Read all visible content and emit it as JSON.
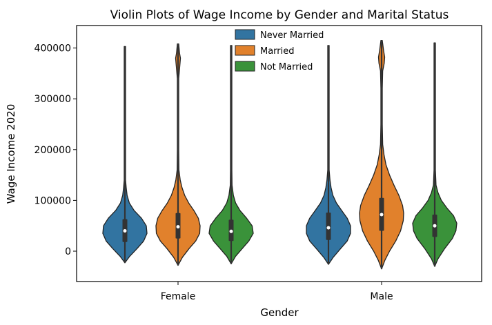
{
  "chart_data": {
    "type": "violin",
    "title": "Violin Plots of Wage Income by Gender and Marital Status",
    "xlabel": "Gender",
    "ylabel": "Wage Income 2020",
    "categories": [
      "Female",
      "Male"
    ],
    "ylim": [
      -60000,
      440000
    ],
    "yticks": [
      0,
      100000,
      200000,
      300000,
      400000
    ],
    "ytick_labels": [
      "0",
      "100000",
      "200000",
      "300000",
      "400000"
    ],
    "legend": {
      "placement": "top-center",
      "entries": [
        {
          "label": "Never Married",
          "color": "#3274a1"
        },
        {
          "label": "Married",
          "color": "#e1812c"
        },
        {
          "label": "Not Married",
          "color": "#3a923a"
        }
      ]
    },
    "series": [
      {
        "name": "Never Married",
        "color": "#3274a1",
        "groups": [
          {
            "category": "Female",
            "min": -23000,
            "max": 403000,
            "q1": 18000,
            "median": 40000,
            "q3": 63000,
            "profile": [
              [
                -23000,
                0
              ],
              [
                -10000,
                0.22
              ],
              [
                5000,
                0.55
              ],
              [
                20000,
                0.85
              ],
              [
                35000,
                1.0
              ],
              [
                50000,
                0.97
              ],
              [
                65000,
                0.75
              ],
              [
                80000,
                0.42
              ],
              [
                95000,
                0.2
              ],
              [
                110000,
                0.1
              ],
              [
                125000,
                0.06
              ],
              [
                140000,
                0.03
              ],
              [
                160000,
                0.01
              ],
              [
                200000,
                0.01
              ],
              [
                403000,
                0.01
              ]
            ]
          },
          {
            "category": "Male",
            "min": -26000,
            "max": 405000,
            "q1": 22000,
            "median": 46000,
            "q3": 76000,
            "profile": [
              [
                -26000,
                0
              ],
              [
                -12000,
                0.22
              ],
              [
                5000,
                0.55
              ],
              [
                20000,
                0.85
              ],
              [
                35000,
                1.0
              ],
              [
                50000,
                1.0
              ],
              [
                65000,
                0.85
              ],
              [
                80000,
                0.6
              ],
              [
                95000,
                0.36
              ],
              [
                110000,
                0.2
              ],
              [
                125000,
                0.12
              ],
              [
                140000,
                0.07
              ],
              [
                160000,
                0.03
              ],
              [
                200000,
                0.01
              ],
              [
                405000,
                0.01
              ]
            ]
          }
        ]
      },
      {
        "name": "Married",
        "color": "#e1812c",
        "groups": [
          {
            "category": "Female",
            "min": -28000,
            "max": 408000,
            "q1": 25000,
            "median": 48000,
            "q3": 75000,
            "profile": [
              [
                -28000,
                0
              ],
              [
                -12000,
                0.2
              ],
              [
                5000,
                0.5
              ],
              [
                20000,
                0.8
              ],
              [
                35000,
                0.98
              ],
              [
                50000,
                1.0
              ],
              [
                65000,
                0.92
              ],
              [
                80000,
                0.72
              ],
              [
                95000,
                0.48
              ],
              [
                110000,
                0.3
              ],
              [
                125000,
                0.18
              ],
              [
                140000,
                0.1
              ],
              [
                160000,
                0.04
              ],
              [
                200000,
                0.02
              ],
              [
                250000,
                0.01
              ],
              [
                340000,
                0.01
              ],
              [
                370000,
                0.09
              ],
              [
                380000,
                0.11
              ],
              [
                390000,
                0.07
              ],
              [
                408000,
                0.01
              ]
            ]
          },
          {
            "category": "Male",
            "min": -35000,
            "max": 415000,
            "q1": 40000,
            "median": 72000,
            "q3": 105000,
            "profile": [
              [
                -35000,
                0
              ],
              [
                -18000,
                0.15
              ],
              [
                0,
                0.36
              ],
              [
                20000,
                0.64
              ],
              [
                40000,
                0.86
              ],
              [
                60000,
                0.98
              ],
              [
                75000,
                1.0
              ],
              [
                90000,
                0.95
              ],
              [
                110000,
                0.78
              ],
              [
                130000,
                0.56
              ],
              [
                150000,
                0.36
              ],
              [
                170000,
                0.2
              ],
              [
                190000,
                0.11
              ],
              [
                210000,
                0.05
              ],
              [
                250000,
                0.02
              ],
              [
                320000,
                0.02
              ],
              [
                355000,
                0.05
              ],
              [
                370000,
                0.12
              ],
              [
                382000,
                0.14
              ],
              [
                395000,
                0.09
              ],
              [
                415000,
                0.01
              ]
            ]
          }
        ]
      },
      {
        "name": "Not Married",
        "color": "#3a923a",
        "groups": [
          {
            "category": "Female",
            "min": -25000,
            "max": 405000,
            "q1": 20000,
            "median": 39000,
            "q3": 62000,
            "profile": [
              [
                -25000,
                0
              ],
              [
                -10000,
                0.2
              ],
              [
                5000,
                0.5
              ],
              [
                20000,
                0.8
              ],
              [
                35000,
                1.0
              ],
              [
                50000,
                0.95
              ],
              [
                65000,
                0.7
              ],
              [
                80000,
                0.4
              ],
              [
                95000,
                0.2
              ],
              [
                110000,
                0.1
              ],
              [
                130000,
                0.04
              ],
              [
                160000,
                0.01
              ],
              [
                405000,
                0.01
              ]
            ]
          },
          {
            "category": "Male",
            "min": -30000,
            "max": 410000,
            "q1": 28000,
            "median": 50000,
            "q3": 72000,
            "profile": [
              [
                -30000,
                0
              ],
              [
                -15000,
                0.15
              ],
              [
                5000,
                0.45
              ],
              [
                25000,
                0.8
              ],
              [
                40000,
                0.96
              ],
              [
                55000,
                1.0
              ],
              [
                70000,
                0.85
              ],
              [
                85000,
                0.55
              ],
              [
                100000,
                0.3
              ],
              [
                115000,
                0.15
              ],
              [
                130000,
                0.06
              ],
              [
                160000,
                0.02
              ],
              [
                410000,
                0.01
              ]
            ]
          }
        ]
      }
    ]
  }
}
